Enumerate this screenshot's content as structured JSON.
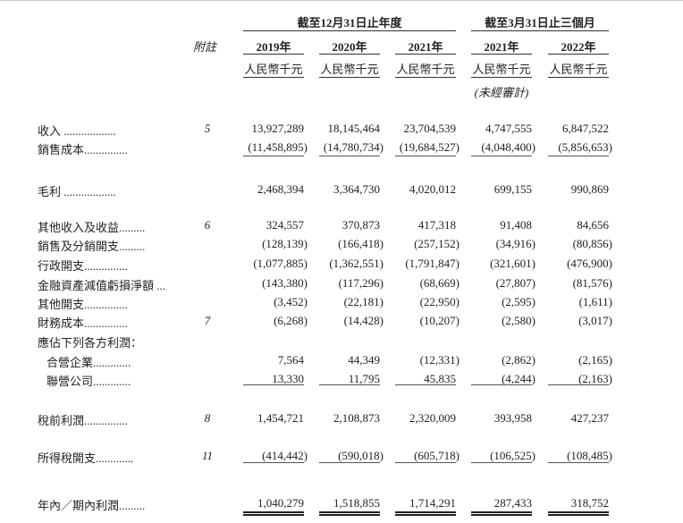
{
  "header": {
    "group_year": "截至12月31日止年度",
    "group_quarter": "截至3月31日止三個月",
    "note_label": "附註",
    "columns": [
      {
        "year": "2019年",
        "currency": "人民幣千元"
      },
      {
        "year": "2020年",
        "currency": "人民幣千元"
      },
      {
        "year": "2021年",
        "currency": "人民幣千元"
      },
      {
        "year": "2021年",
        "currency": "人民幣千元",
        "remark": "(未經審計)"
      },
      {
        "year": "2022年",
        "currency": "人民幣千元"
      }
    ]
  },
  "rows": [
    {
      "label": "收入 ..................",
      "note": "5",
      "values": [
        "13,927,289",
        "18,145,464",
        "23,704,539",
        "4,747,555",
        "6,847,522"
      ]
    },
    {
      "label": "銷售成本...............",
      "note": "",
      "values": [
        "(11,458,895)",
        "(14,780,734)",
        "(19,684,527)",
        "(4,048,400)",
        "(5,856,653)"
      ]
    },
    {
      "label": "毛利 ..................",
      "note": "",
      "values": [
        "2,468,394",
        "3,364,730",
        "4,020,012",
        "699,155",
        "990,869"
      ]
    },
    {
      "label": "其他收入及收益.........",
      "note": "6",
      "values": [
        "324,557",
        "370,873",
        "417,318",
        "91,408",
        "84,656"
      ]
    },
    {
      "label": "銷售及分銷開支.........",
      "note": "",
      "values": [
        "(128,139)",
        "(166,418)",
        "(257,152)",
        "(34,916)",
        "(80,856)"
      ]
    },
    {
      "label": "行政開支...............",
      "note": "",
      "values": [
        "(1,077,885)",
        "(1,362,551)",
        "(1,791,847)",
        "(321,601)",
        "(476,900)"
      ]
    },
    {
      "label": "金融資產減值虧損淨額 ...",
      "note": "",
      "values": [
        "(143,380)",
        "(117,296)",
        "(68,669)",
        "(27,807)",
        "(81,576)"
      ]
    },
    {
      "label": "其他開支...............",
      "note": "",
      "values": [
        "(3,452)",
        "(22,181)",
        "(22,950)",
        "(2,595)",
        "(1,611)"
      ]
    },
    {
      "label": "財務成本...............",
      "note": "7",
      "values": [
        "(6,268)",
        "(14,428)",
        "(10,207)",
        "(2,580)",
        "(3,017)"
      ]
    },
    {
      "label": "應佔下列各方利潤：",
      "note": "",
      "values": [
        "",
        "",
        "",
        "",
        ""
      ]
    },
    {
      "label": "合營企業.............",
      "note": "",
      "values": [
        "7,564",
        "44,349",
        "(12,331)",
        "(2,862)",
        "(2,165)"
      ]
    },
    {
      "label": "聯營公司.............",
      "note": "",
      "values": [
        "13,330",
        "11,795",
        "45,835",
        "(4,244)",
        "(2,163)"
      ]
    },
    {
      "label": "稅前利潤...............",
      "note": "8",
      "values": [
        "1,454,721",
        "2,108,873",
        "2,320,009",
        "393,958",
        "427,237"
      ]
    },
    {
      "label": "所得稅開支.............",
      "note": "11",
      "values": [
        "(414,442)",
        "(590,018)",
        "(605,718)",
        "(106,525)",
        "(108,485)"
      ]
    },
    {
      "label": "年內／期內利潤.........",
      "note": "",
      "values": [
        "1,040,279",
        "1,518,855",
        "1,714,291",
        "287,433",
        "318,752"
      ]
    }
  ]
}
